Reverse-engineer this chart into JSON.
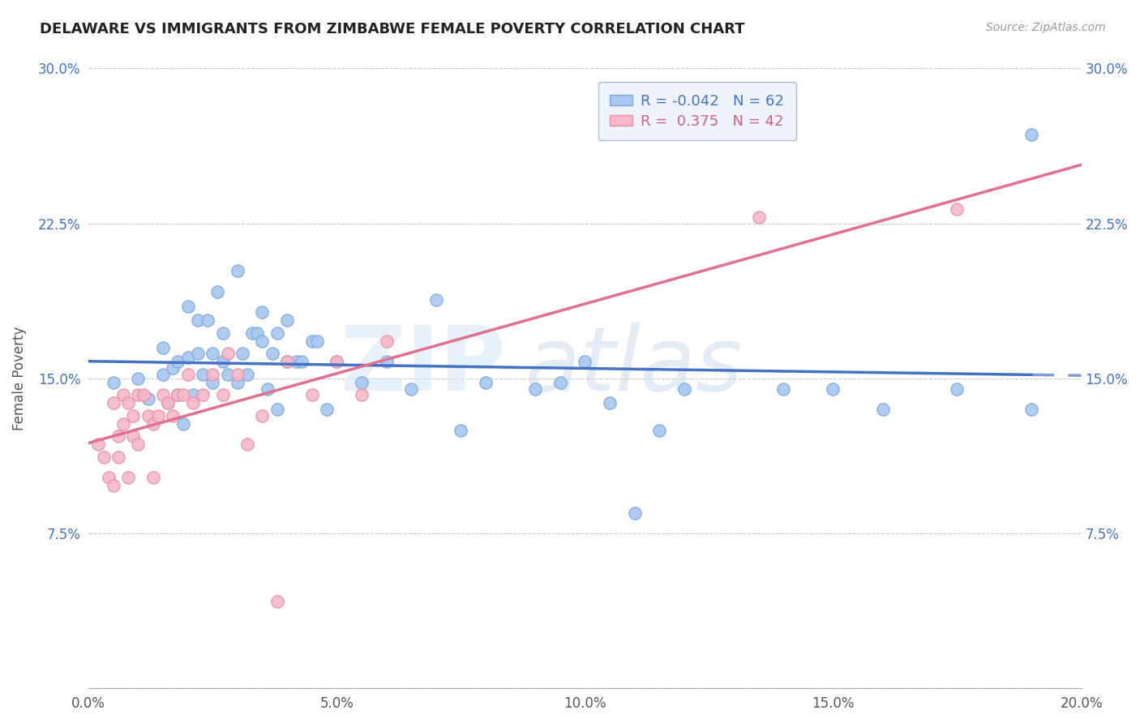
{
  "title": "DELAWARE VS IMMIGRANTS FROM ZIMBABWE FEMALE POVERTY CORRELATION CHART",
  "source": "Source: ZipAtlas.com",
  "ylabel": "Female Poverty",
  "xlim": [
    0.0,
    0.2
  ],
  "ylim": [
    0.0,
    0.3
  ],
  "xticks": [
    0.0,
    0.05,
    0.1,
    0.15,
    0.2
  ],
  "xtick_labels": [
    "0.0%",
    "5.0%",
    "10.0%",
    "15.0%",
    "20.0%"
  ],
  "yticks": [
    0.0,
    0.075,
    0.15,
    0.225,
    0.3
  ],
  "ytick_labels": [
    "",
    "7.5%",
    "15.0%",
    "22.5%",
    "30.0%"
  ],
  "delaware_r": -0.042,
  "delaware_n": 62,
  "zimbabwe_r": 0.375,
  "zimbabwe_n": 42,
  "delaware_color": "#A8C8F0",
  "delaware_edge_color": "#7AAAE0",
  "zimbabwe_color": "#F5B8C8",
  "zimbabwe_edge_color": "#E890A8",
  "delaware_line_color": "#4472C4",
  "zimbabwe_line_color": "#E07090",
  "delaware_scatter_x": [
    0.005,
    0.01,
    0.012,
    0.015,
    0.015,
    0.016,
    0.017,
    0.018,
    0.018,
    0.019,
    0.02,
    0.02,
    0.021,
    0.022,
    0.022,
    0.023,
    0.024,
    0.025,
    0.025,
    0.026,
    0.027,
    0.027,
    0.028,
    0.03,
    0.03,
    0.031,
    0.032,
    0.033,
    0.034,
    0.035,
    0.035,
    0.036,
    0.037,
    0.038,
    0.038,
    0.04,
    0.04,
    0.042,
    0.043,
    0.045,
    0.046,
    0.048,
    0.05,
    0.055,
    0.06,
    0.065,
    0.07,
    0.075,
    0.08,
    0.09,
    0.095,
    0.1,
    0.105,
    0.11,
    0.115,
    0.12,
    0.14,
    0.15,
    0.16,
    0.175,
    0.19,
    0.19
  ],
  "delaware_scatter_y": [
    0.148,
    0.15,
    0.14,
    0.152,
    0.165,
    0.138,
    0.155,
    0.142,
    0.158,
    0.128,
    0.16,
    0.185,
    0.142,
    0.162,
    0.178,
    0.152,
    0.178,
    0.148,
    0.162,
    0.192,
    0.158,
    0.172,
    0.152,
    0.148,
    0.202,
    0.162,
    0.152,
    0.172,
    0.172,
    0.168,
    0.182,
    0.145,
    0.162,
    0.135,
    0.172,
    0.158,
    0.178,
    0.158,
    0.158,
    0.168,
    0.168,
    0.135,
    0.158,
    0.148,
    0.158,
    0.145,
    0.188,
    0.125,
    0.148,
    0.145,
    0.148,
    0.158,
    0.138,
    0.085,
    0.125,
    0.145,
    0.145,
    0.145,
    0.135,
    0.145,
    0.135,
    0.268
  ],
  "zimbabwe_scatter_x": [
    0.002,
    0.003,
    0.004,
    0.005,
    0.005,
    0.006,
    0.006,
    0.007,
    0.007,
    0.008,
    0.008,
    0.009,
    0.009,
    0.01,
    0.01,
    0.011,
    0.012,
    0.013,
    0.013,
    0.014,
    0.015,
    0.016,
    0.017,
    0.018,
    0.019,
    0.02,
    0.021,
    0.023,
    0.025,
    0.027,
    0.028,
    0.03,
    0.032,
    0.035,
    0.038,
    0.04,
    0.045,
    0.05,
    0.055,
    0.06,
    0.135,
    0.175
  ],
  "zimbabwe_scatter_y": [
    0.118,
    0.112,
    0.102,
    0.138,
    0.098,
    0.122,
    0.112,
    0.128,
    0.142,
    0.102,
    0.138,
    0.122,
    0.132,
    0.118,
    0.142,
    0.142,
    0.132,
    0.128,
    0.102,
    0.132,
    0.142,
    0.138,
    0.132,
    0.142,
    0.142,
    0.152,
    0.138,
    0.142,
    0.152,
    0.142,
    0.162,
    0.152,
    0.118,
    0.132,
    0.042,
    0.158,
    0.142,
    0.158,
    0.142,
    0.168,
    0.228,
    0.232
  ],
  "del_line_x0": 0.0,
  "del_line_x1": 0.2,
  "del_line_solid_end": 0.12,
  "zim_line_x0": 0.0,
  "zim_line_x1": 0.2
}
